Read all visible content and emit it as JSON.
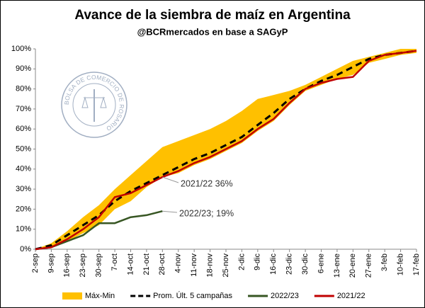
{
  "chart_data": {
    "type": "line",
    "title": "Avance de la siembra de maíz en Argentina",
    "subtitle": "@BCRmercados en base a SAGyP",
    "watermark": "BOLSA DE COMERCIO DE ROSARIO",
    "categories": [
      "2-sep",
      "9-sep",
      "16-sep",
      "23-sep",
      "30-sep",
      "7-oct",
      "14-oct",
      "21-oct",
      "28-oct",
      "4-nov",
      "11-nov",
      "18-nov",
      "25-nov",
      "2-dic",
      "9-dic",
      "16-dic",
      "23-dic",
      "30-dic",
      "6-ene",
      "13-ene",
      "20-ene",
      "27-ene",
      "3-feb",
      "10-feb",
      "17-feb"
    ],
    "ylim": [
      0,
      100
    ],
    "yticks": [
      {
        "value": 0,
        "label": "0%"
      },
      {
        "value": 10,
        "label": "10%"
      },
      {
        "value": 20,
        "label": "20%"
      },
      {
        "value": 30,
        "label": "30%"
      },
      {
        "value": 40,
        "label": "40%"
      },
      {
        "value": 50,
        "label": "50%"
      },
      {
        "value": 60,
        "label": "60%"
      },
      {
        "value": 70,
        "label": "70%"
      },
      {
        "value": 80,
        "label": "80%"
      },
      {
        "value": 90,
        "label": "90%"
      },
      {
        "value": 100,
        "label": "100%"
      }
    ],
    "series": [
      {
        "name": "Máx-Min",
        "kind": "band",
        "color": "#ffc000",
        "upper": [
          0,
          3,
          9,
          16,
          22,
          30,
          37,
          44,
          51,
          54,
          57,
          60,
          64,
          69,
          75,
          77,
          79,
          82,
          86,
          90,
          94,
          96,
          98,
          100,
          100
        ],
        "lower": [
          0,
          1,
          4,
          8,
          12,
          20,
          24,
          31,
          36,
          38,
          42,
          45,
          49,
          53,
          59,
          64,
          72,
          79,
          82,
          85,
          87,
          93,
          95,
          97,
          98
        ]
      },
      {
        "name": "Prom. Últ. 5 campañas",
        "color": "#000000",
        "dashed": true,
        "values": [
          0,
          2,
          7,
          12,
          17,
          24,
          29,
          33,
          37,
          41,
          45,
          48,
          52,
          56,
          62,
          68,
          75,
          80,
          84,
          87,
          91,
          95,
          97,
          98,
          99
        ]
      },
      {
        "name": "2022/23",
        "color": "#375623",
        "values": [
          0,
          1,
          4,
          7,
          13,
          13,
          16,
          17,
          19,
          null,
          null,
          null,
          null,
          null,
          null,
          null,
          null,
          null,
          null,
          null,
          null,
          null,
          null,
          null,
          null
        ]
      },
      {
        "name": "2021/22",
        "color": "#c00000",
        "values": [
          0,
          1,
          5,
          10,
          16,
          26,
          28,
          32,
          36,
          39,
          43,
          46,
          50,
          54,
          60,
          65,
          73,
          80,
          83,
          85,
          86,
          94,
          97,
          98,
          99
        ]
      }
    ],
    "annotations": [
      {
        "text": "2021/22 36%",
        "series": 3,
        "index": 8
      },
      {
        "text": "2022/23; 19%",
        "series": 2,
        "index": 8
      }
    ]
  }
}
